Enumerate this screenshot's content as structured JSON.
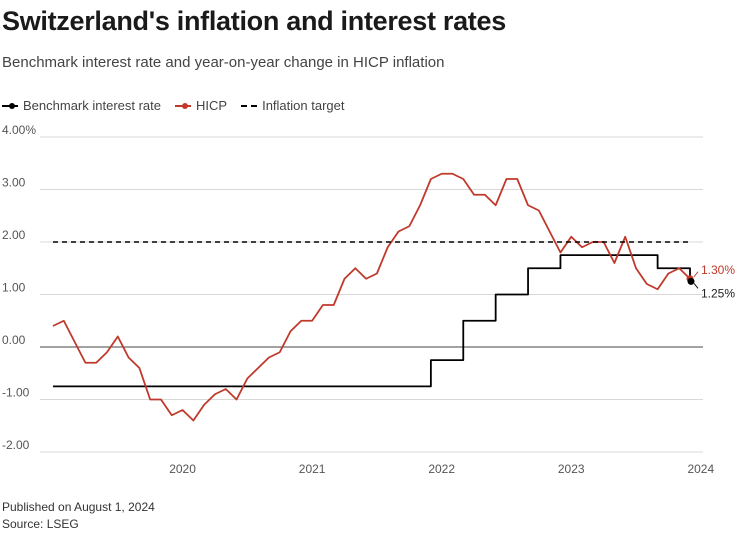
{
  "title": "Switzerland's inflation and interest rates",
  "subtitle": "Benchmark interest rate and year-on-year change in HICP inflation",
  "legend": [
    {
      "label": "Benchmark interest rate",
      "color": "#000000",
      "style": "solid"
    },
    {
      "label": "HICP",
      "color": "#c0392b",
      "style": "solid"
    },
    {
      "label": "Inflation target",
      "color": "#000000",
      "style": "dashed"
    }
  ],
  "footer": {
    "published": "Published on August 1, 2024",
    "source": "Source: LSEG"
  },
  "chart_data": {
    "type": "line",
    "ylim": [
      -2.0,
      4.0
    ],
    "yticks": [
      {
        "value": 4.0,
        "label": "4.00%"
      },
      {
        "value": 3.0,
        "label": "3.00"
      },
      {
        "value": 2.0,
        "label": "2.00"
      },
      {
        "value": 1.0,
        "label": "1.00"
      },
      {
        "value": 0.0,
        "label": "0.00"
      },
      {
        "value": -1.0,
        "label": "-1.00"
      },
      {
        "value": -2.0,
        "label": "-2.00"
      }
    ],
    "xlim": [
      "2019-07",
      "2024-06"
    ],
    "xticks": [
      "2020",
      "2021",
      "2022",
      "2023",
      "2024"
    ],
    "grid": true,
    "legend_position": "top-left",
    "series": [
      {
        "name": "Benchmark interest rate",
        "color": "#000000",
        "step": true,
        "points": [
          [
            "2019-07",
            -0.75
          ],
          [
            "2022-06",
            -0.25
          ],
          [
            "2022-09",
            0.5
          ],
          [
            "2022-12",
            1.0
          ],
          [
            "2023-03",
            1.5
          ],
          [
            "2023-06",
            1.75
          ],
          [
            "2024-03",
            1.5
          ],
          [
            "2024-06",
            1.25
          ]
        ],
        "end_label": "1.25%"
      },
      {
        "name": "HICP",
        "color": "#c0392b",
        "step": false,
        "points": [
          [
            "2019-07",
            0.4
          ],
          [
            "2019-08",
            0.5
          ],
          [
            "2019-09",
            0.1
          ],
          [
            "2019-10",
            -0.3
          ],
          [
            "2019-11",
            -0.3
          ],
          [
            "2019-12",
            -0.1
          ],
          [
            "2020-01",
            0.2
          ],
          [
            "2020-02",
            -0.2
          ],
          [
            "2020-03",
            -0.4
          ],
          [
            "2020-04",
            -1.0
          ],
          [
            "2020-05",
            -1.0
          ],
          [
            "2020-06",
            -1.3
          ],
          [
            "2020-07",
            -1.2
          ],
          [
            "2020-08",
            -1.4
          ],
          [
            "2020-09",
            -1.1
          ],
          [
            "2020-10",
            -0.9
          ],
          [
            "2020-11",
            -0.8
          ],
          [
            "2020-12",
            -1.0
          ],
          [
            "2021-01",
            -0.6
          ],
          [
            "2021-02",
            -0.4
          ],
          [
            "2021-03",
            -0.2
          ],
          [
            "2021-04",
            -0.1
          ],
          [
            "2021-05",
            0.3
          ],
          [
            "2021-06",
            0.5
          ],
          [
            "2021-07",
            0.5
          ],
          [
            "2021-08",
            0.8
          ],
          [
            "2021-09",
            0.8
          ],
          [
            "2021-10",
            1.3
          ],
          [
            "2021-11",
            1.5
          ],
          [
            "2021-12",
            1.3
          ],
          [
            "2022-01",
            1.4
          ],
          [
            "2022-02",
            1.9
          ],
          [
            "2022-03",
            2.2
          ],
          [
            "2022-04",
            2.3
          ],
          [
            "2022-05",
            2.7
          ],
          [
            "2022-06",
            3.2
          ],
          [
            "2022-07",
            3.3
          ],
          [
            "2022-08",
            3.3
          ],
          [
            "2022-09",
            3.2
          ],
          [
            "2022-10",
            2.9
          ],
          [
            "2022-11",
            2.9
          ],
          [
            "2022-12",
            2.7
          ],
          [
            "2023-01",
            3.2
          ],
          [
            "2023-02",
            3.2
          ],
          [
            "2023-03",
            2.7
          ],
          [
            "2023-04",
            2.6
          ],
          [
            "2023-05",
            2.2
          ],
          [
            "2023-06",
            1.8
          ],
          [
            "2023-07",
            2.1
          ],
          [
            "2023-08",
            1.9
          ],
          [
            "2023-09",
            2.0
          ],
          [
            "2023-10",
            2.0
          ],
          [
            "2023-11",
            1.6
          ],
          [
            "2023-12",
            2.1
          ],
          [
            "2024-01",
            1.5
          ],
          [
            "2024-02",
            1.2
          ],
          [
            "2024-03",
            1.1
          ],
          [
            "2024-04",
            1.4
          ],
          [
            "2024-05",
            1.5
          ],
          [
            "2024-06",
            1.3
          ]
        ],
        "end_label": "1.30%"
      },
      {
        "name": "Inflation target",
        "color": "#000000",
        "dashed": true,
        "points": [
          [
            "2019-07",
            2.0
          ],
          [
            "2024-06",
            2.0
          ]
        ]
      }
    ]
  }
}
